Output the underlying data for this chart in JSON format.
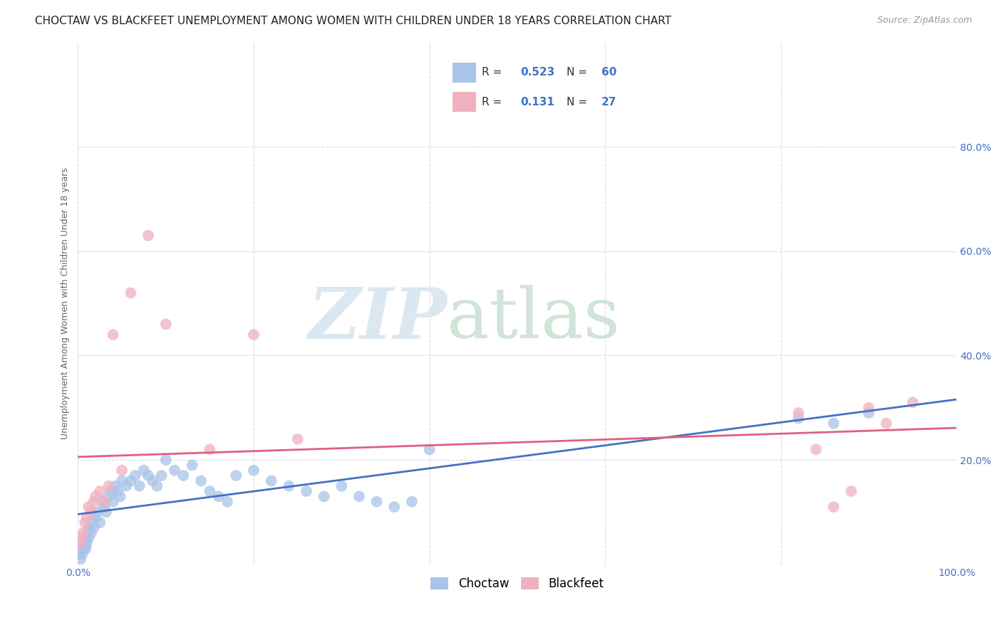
{
  "title": "CHOCTAW VS BLACKFEET UNEMPLOYMENT AMONG WOMEN WITH CHILDREN UNDER 18 YEARS CORRELATION CHART",
  "source": "Source: ZipAtlas.com",
  "ylabel": "Unemployment Among Women with Children Under 18 years",
  "xlim": [
    0,
    1.0
  ],
  "ylim": [
    0,
    1.0
  ],
  "choctaw_color": "#a8c4e8",
  "blackfeet_color": "#f0b0c0",
  "choctaw_line_color": "#4472c4",
  "blackfeet_line_color": "#e06080",
  "choctaw_R": 0.523,
  "choctaw_N": 60,
  "blackfeet_R": 0.131,
  "blackfeet_N": 27,
  "legend_label_choctaw": "Choctaw",
  "legend_label_blackfeet": "Blackfeet",
  "choctaw_x": [
    0.002,
    0.003,
    0.004,
    0.005,
    0.006,
    0.007,
    0.008,
    0.009,
    0.01,
    0.011,
    0.012,
    0.013,
    0.015,
    0.016,
    0.018,
    0.02,
    0.022,
    0.025,
    0.028,
    0.03,
    0.032,
    0.035,
    0.038,
    0.04,
    0.042,
    0.045,
    0.048,
    0.05,
    0.055,
    0.06,
    0.065,
    0.07,
    0.075,
    0.08,
    0.085,
    0.09,
    0.095,
    0.1,
    0.11,
    0.12,
    0.13,
    0.14,
    0.15,
    0.16,
    0.17,
    0.18,
    0.2,
    0.22,
    0.24,
    0.26,
    0.28,
    0.3,
    0.32,
    0.34,
    0.36,
    0.38,
    0.4,
    0.82,
    0.86,
    0.9
  ],
  "choctaw_y": [
    0.02,
    0.01,
    0.03,
    0.02,
    0.04,
    0.03,
    0.05,
    0.03,
    0.04,
    0.06,
    0.05,
    0.07,
    0.06,
    0.08,
    0.07,
    0.09,
    0.1,
    0.08,
    0.12,
    0.11,
    0.1,
    0.13,
    0.14,
    0.12,
    0.15,
    0.14,
    0.13,
    0.16,
    0.15,
    0.16,
    0.17,
    0.15,
    0.18,
    0.17,
    0.16,
    0.15,
    0.17,
    0.2,
    0.18,
    0.17,
    0.19,
    0.16,
    0.14,
    0.13,
    0.12,
    0.17,
    0.18,
    0.16,
    0.15,
    0.14,
    0.13,
    0.15,
    0.13,
    0.12,
    0.11,
    0.12,
    0.22,
    0.28,
    0.27,
    0.29
  ],
  "blackfeet_x": [
    0.002,
    0.004,
    0.006,
    0.008,
    0.01,
    0.012,
    0.015,
    0.018,
    0.02,
    0.025,
    0.03,
    0.035,
    0.04,
    0.05,
    0.06,
    0.08,
    0.1,
    0.15,
    0.2,
    0.25,
    0.82,
    0.84,
    0.86,
    0.88,
    0.9,
    0.92,
    0.95
  ],
  "blackfeet_y": [
    0.04,
    0.05,
    0.06,
    0.08,
    0.09,
    0.11,
    0.1,
    0.12,
    0.13,
    0.14,
    0.12,
    0.15,
    0.44,
    0.18,
    0.52,
    0.63,
    0.46,
    0.22,
    0.44,
    0.24,
    0.29,
    0.22,
    0.11,
    0.14,
    0.3,
    0.27,
    0.31
  ],
  "grid_color": "#d8d8e8",
  "background_color": "#ffffff",
  "tick_color": "#4472c4",
  "title_fontsize": 11,
  "axis_label_fontsize": 9,
  "tick_fontsize": 10,
  "legend_fontsize": 11,
  "source_fontsize": 9
}
